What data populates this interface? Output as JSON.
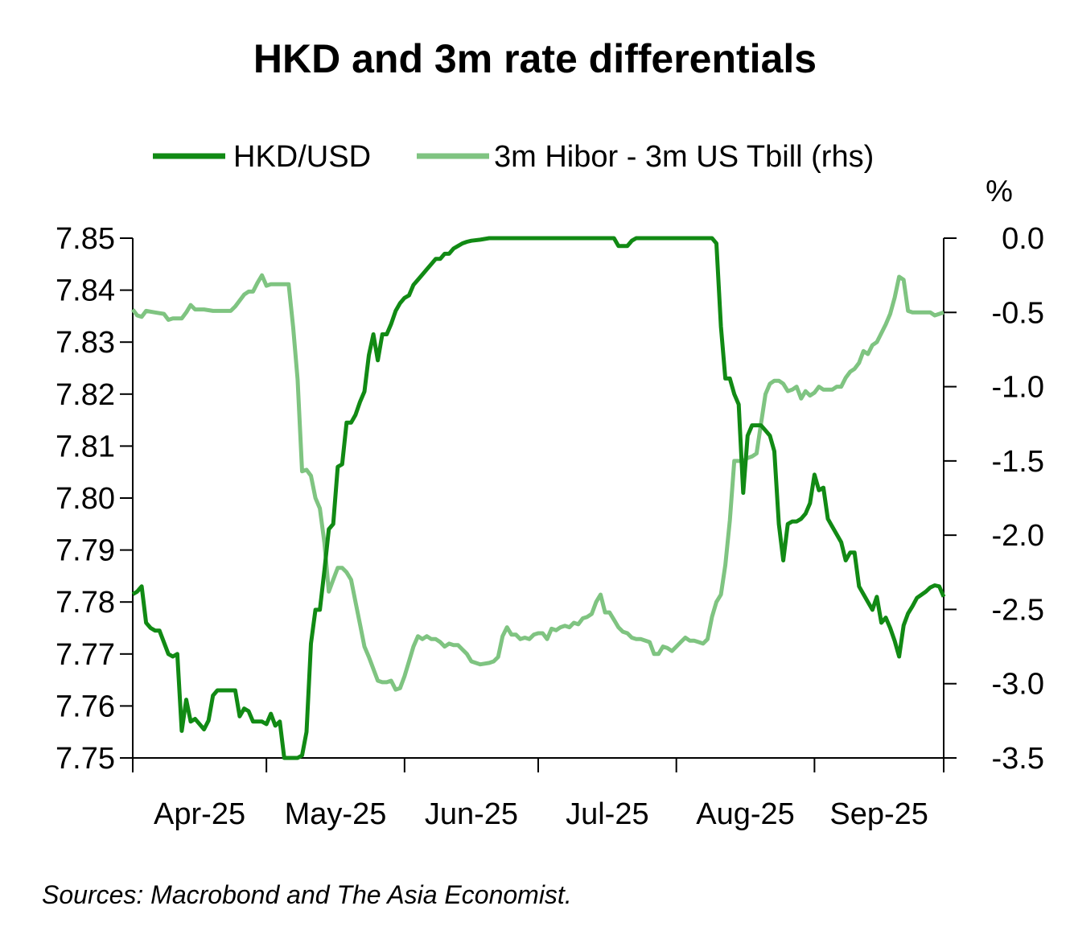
{
  "chart_data": {
    "type": "line",
    "title": "HKD and 3m rate differentials",
    "source": "Sources: Macrobond and The Asia Economist.",
    "right_axis_unit": "%",
    "x_unit": "day-index (0 = 1-Apr-25)",
    "x_range": [
      0,
      182
    ],
    "x_ticks": [
      {
        "label": "Apr-25",
        "pos": 0
      },
      {
        "label": "May-25",
        "pos": 30
      },
      {
        "label": "Jun-25",
        "pos": 61
      },
      {
        "label": "Jul-25",
        "pos": 91
      },
      {
        "label": "Aug-25",
        "pos": 122
      },
      {
        "label": "Sep-25",
        "pos": 153
      }
    ],
    "x_boundary_end": 182,
    "y_left": {
      "min": 7.75,
      "max": 7.85,
      "ticks": [
        "7.75",
        "7.76",
        "7.77",
        "7.78",
        "7.79",
        "7.80",
        "7.81",
        "7.82",
        "7.83",
        "7.84",
        "7.85"
      ]
    },
    "y_right": {
      "min": -3.5,
      "max": 0.0,
      "ticks": [
        "-3.5",
        "-3.0",
        "-2.5",
        "-2.0",
        "-1.5",
        "-1.0",
        "-0.5",
        "0.0"
      ]
    },
    "series": [
      {
        "name": "3m Hibor - 3m US Tbill (rhs)",
        "axis": "right",
        "color": "#7fc481",
        "points": [
          [
            0,
            -0.48
          ],
          [
            1,
            -0.52
          ],
          [
            2,
            -0.53
          ],
          [
            3,
            -0.49
          ],
          [
            5,
            -0.5
          ],
          [
            7,
            -0.51
          ],
          [
            8,
            -0.55
          ],
          [
            9,
            -0.54
          ],
          [
            11,
            -0.54
          ],
          [
            12,
            -0.5
          ],
          [
            13,
            -0.45
          ],
          [
            14,
            -0.48
          ],
          [
            16,
            -0.48
          ],
          [
            18,
            -0.49
          ],
          [
            22,
            -0.49
          ],
          [
            23,
            -0.46
          ],
          [
            25,
            -0.38
          ],
          [
            26,
            -0.36
          ],
          [
            27,
            -0.36
          ],
          [
            28,
            -0.3
          ],
          [
            29,
            -0.25
          ],
          [
            30,
            -0.32
          ],
          [
            31,
            -0.31
          ],
          [
            33,
            -0.31
          ],
          [
            35,
            -0.31
          ],
          [
            36,
            -0.6
          ],
          [
            37,
            -0.95
          ],
          [
            38,
            -1.57
          ],
          [
            39,
            -1.56
          ],
          [
            40,
            -1.6
          ],
          [
            41,
            -1.75
          ],
          [
            42,
            -1.82
          ],
          [
            43,
            -2.05
          ],
          [
            44,
            -2.38
          ],
          [
            45,
            -2.3
          ],
          [
            46,
            -2.22
          ],
          [
            47,
            -2.22
          ],
          [
            48,
            -2.25
          ],
          [
            49,
            -2.3
          ],
          [
            50,
            -2.45
          ],
          [
            51,
            -2.6
          ],
          [
            52,
            -2.75
          ],
          [
            53,
            -2.82
          ],
          [
            55,
            -2.98
          ],
          [
            56,
            -2.99
          ],
          [
            57,
            -2.99
          ],
          [
            58,
            -2.98
          ],
          [
            59,
            -3.04
          ],
          [
            60,
            -3.03
          ],
          [
            61,
            -2.95
          ],
          [
            62,
            -2.85
          ],
          [
            63,
            -2.75
          ],
          [
            64,
            -2.68
          ],
          [
            65,
            -2.7
          ],
          [
            66,
            -2.68
          ],
          [
            67,
            -2.7
          ],
          [
            68,
            -2.7
          ],
          [
            69,
            -2.72
          ],
          [
            70,
            -2.75
          ],
          [
            71,
            -2.73
          ],
          [
            72,
            -2.74
          ],
          [
            73,
            -2.74
          ],
          [
            74,
            -2.77
          ],
          [
            75,
            -2.8
          ],
          [
            76,
            -2.85
          ],
          [
            77,
            -2.86
          ],
          [
            78,
            -2.87
          ],
          [
            80,
            -2.86
          ],
          [
            81,
            -2.85
          ],
          [
            82,
            -2.82
          ],
          [
            83,
            -2.68
          ],
          [
            84,
            -2.62
          ],
          [
            85,
            -2.67
          ],
          [
            86,
            -2.67
          ],
          [
            87,
            -2.7
          ],
          [
            88,
            -2.69
          ],
          [
            89,
            -2.7
          ],
          [
            90,
            -2.67
          ],
          [
            91,
            -2.66
          ],
          [
            92,
            -2.66
          ],
          [
            93,
            -2.7
          ],
          [
            94,
            -2.63
          ],
          [
            95,
            -2.64
          ],
          [
            96,
            -2.62
          ],
          [
            97,
            -2.61
          ],
          [
            98,
            -2.62
          ],
          [
            99,
            -2.59
          ],
          [
            100,
            -2.6
          ],
          [
            101,
            -2.56
          ],
          [
            102,
            -2.55
          ],
          [
            103,
            -2.53
          ],
          [
            104,
            -2.45
          ],
          [
            105,
            -2.4
          ],
          [
            106,
            -2.52
          ],
          [
            107,
            -2.52
          ],
          [
            108,
            -2.57
          ],
          [
            109,
            -2.62
          ],
          [
            110,
            -2.65
          ],
          [
            111,
            -2.66
          ],
          [
            112,
            -2.69
          ],
          [
            113,
            -2.7
          ],
          [
            114,
            -2.7
          ],
          [
            116,
            -2.72
          ],
          [
            117,
            -2.8
          ],
          [
            118,
            -2.8
          ],
          [
            119,
            -2.75
          ],
          [
            120,
            -2.76
          ],
          [
            121,
            -2.78
          ],
          [
            122,
            -2.75
          ],
          [
            123,
            -2.72
          ],
          [
            124,
            -2.69
          ],
          [
            125,
            -2.71
          ],
          [
            126,
            -2.71
          ],
          [
            127,
            -2.72
          ],
          [
            128,
            -2.73
          ],
          [
            129,
            -2.7
          ],
          [
            130,
            -2.55
          ],
          [
            131,
            -2.45
          ],
          [
            132,
            -2.4
          ],
          [
            133,
            -2.2
          ],
          [
            134,
            -1.9
          ],
          [
            135,
            -1.5
          ],
          [
            136,
            -1.5
          ],
          [
            137,
            -1.5
          ],
          [
            138,
            -1.48
          ],
          [
            139,
            -1.47
          ],
          [
            140,
            -1.45
          ],
          [
            141,
            -1.25
          ],
          [
            142,
            -1.05
          ],
          [
            143,
            -0.98
          ],
          [
            144,
            -0.96
          ],
          [
            145,
            -0.96
          ],
          [
            146,
            -0.98
          ],
          [
            147,
            -1.03
          ],
          [
            148,
            -1.02
          ],
          [
            149,
            -1.0
          ],
          [
            150,
            -1.08
          ],
          [
            151,
            -1.03
          ],
          [
            152,
            -1.06
          ],
          [
            153,
            -1.04
          ],
          [
            154,
            -1.0
          ],
          [
            155,
            -1.02
          ],
          [
            156,
            -1.02
          ],
          [
            157,
            -1.02
          ],
          [
            158,
            -1.0
          ],
          [
            159,
            -1.0
          ],
          [
            160,
            -0.94
          ],
          [
            161,
            -0.9
          ],
          [
            162,
            -0.88
          ],
          [
            163,
            -0.84
          ],
          [
            164,
            -0.76
          ],
          [
            165,
            -0.78
          ],
          [
            166,
            -0.72
          ],
          [
            167,
            -0.7
          ],
          [
            168,
            -0.64
          ],
          [
            169,
            -0.58
          ],
          [
            170,
            -0.51
          ],
          [
            171,
            -0.4
          ],
          [
            172,
            -0.26
          ],
          [
            173,
            -0.28
          ],
          [
            174,
            -0.49
          ],
          [
            175,
            -0.5
          ],
          [
            176,
            -0.5
          ],
          [
            178,
            -0.5
          ],
          [
            179,
            -0.5
          ],
          [
            180,
            -0.52
          ],
          [
            181,
            -0.51
          ],
          [
            182,
            -0.5
          ]
        ]
      },
      {
        "name": "HKD/USD",
        "axis": "left",
        "color": "#118a14",
        "points": [
          [
            0,
            7.7815
          ],
          [
            1,
            7.782
          ],
          [
            2,
            7.783
          ],
          [
            3,
            7.776
          ],
          [
            4,
            7.775
          ],
          [
            5,
            7.7745
          ],
          [
            6,
            7.7745
          ],
          [
            8,
            7.77
          ],
          [
            9,
            7.7695
          ],
          [
            10,
            7.77
          ],
          [
            11,
            7.7552
          ],
          [
            12,
            7.7612
          ],
          [
            13,
            7.757
          ],
          [
            14,
            7.7575
          ],
          [
            15,
            7.7565
          ],
          [
            16,
            7.7555
          ],
          [
            17,
            7.7572
          ],
          [
            18,
            7.762
          ],
          [
            19,
            7.763
          ],
          [
            20,
            7.763
          ],
          [
            23,
            7.763
          ],
          [
            24,
            7.758
          ],
          [
            25,
            7.7595
          ],
          [
            26,
            7.759
          ],
          [
            27,
            7.757
          ],
          [
            29,
            7.757
          ],
          [
            30,
            7.7565
          ],
          [
            31,
            7.7585
          ],
          [
            32,
            7.7562
          ],
          [
            33,
            7.757
          ],
          [
            34,
            7.75
          ],
          [
            35,
            7.75
          ],
          [
            37,
            7.75
          ],
          [
            38,
            7.7505
          ],
          [
            39,
            7.755
          ],
          [
            40,
            7.772
          ],
          [
            41,
            7.7785
          ],
          [
            42,
            7.7785
          ],
          [
            43,
            7.786
          ],
          [
            44,
            7.794
          ],
          [
            45,
            7.795
          ],
          [
            46,
            7.806
          ],
          [
            47,
            7.8065
          ],
          [
            48,
            7.8145
          ],
          [
            49,
            7.8145
          ],
          [
            50,
            7.816
          ],
          [
            51,
            7.8185
          ],
          [
            52,
            7.8205
          ],
          [
            53,
            7.8275
          ],
          [
            54,
            7.8315
          ],
          [
            55,
            7.8265
          ],
          [
            56,
            7.8315
          ],
          [
            57,
            7.8315
          ],
          [
            58,
            7.8335
          ],
          [
            59,
            7.836
          ],
          [
            60,
            7.8375
          ],
          [
            61,
            7.8385
          ],
          [
            62,
            7.839
          ],
          [
            63,
            7.841
          ],
          [
            64,
            7.842
          ],
          [
            65,
            7.843
          ],
          [
            66,
            7.844
          ],
          [
            67,
            7.845
          ],
          [
            68,
            7.846
          ],
          [
            69,
            7.846
          ],
          [
            70,
            7.847
          ],
          [
            71,
            7.847
          ],
          [
            72,
            7.848
          ],
          [
            73,
            7.8485
          ],
          [
            74,
            7.849
          ],
          [
            75,
            7.8493
          ],
          [
            76,
            7.8495
          ],
          [
            78,
            7.8497
          ],
          [
            80,
            7.85
          ],
          [
            130,
            7.85
          ],
          [
            108,
            7.85
          ],
          [
            109,
            7.8485
          ],
          [
            110,
            7.8485
          ],
          [
            111,
            7.8485
          ],
          [
            112,
            7.8495
          ],
          [
            113,
            7.85
          ],
          [
            114,
            7.85
          ],
          [
            130,
            7.85
          ],
          [
            131,
            7.849
          ],
          [
            132,
            7.833
          ],
          [
            133,
            7.823
          ],
          [
            134,
            7.823
          ],
          [
            135,
            7.82
          ],
          [
            136,
            7.818
          ],
          [
            137,
            7.801
          ],
          [
            138,
            7.812
          ],
          [
            139,
            7.814
          ],
          [
            140,
            7.814
          ],
          [
            141,
            7.814
          ],
          [
            142,
            7.813
          ],
          [
            143,
            7.812
          ],
          [
            144,
            7.809
          ],
          [
            145,
            7.795
          ],
          [
            146,
            7.788
          ],
          [
            147,
            7.795
          ],
          [
            148,
            7.7955
          ],
          [
            149,
            7.7955
          ],
          [
            150,
            7.796
          ],
          [
            151,
            7.797
          ],
          [
            152,
            7.799
          ],
          [
            153,
            7.8045
          ],
          [
            154,
            7.8015
          ],
          [
            155,
            7.802
          ],
          [
            156,
            7.796
          ],
          [
            157,
            7.7945
          ],
          [
            158,
            7.793
          ],
          [
            159,
            7.7915
          ],
          [
            160,
            7.788
          ],
          [
            161,
            7.7895
          ],
          [
            162,
            7.7895
          ],
          [
            163,
            7.783
          ],
          [
            164,
            7.7815
          ],
          [
            165,
            7.78
          ],
          [
            166,
            7.7785
          ],
          [
            167,
            7.781
          ],
          [
            168,
            7.776
          ],
          [
            169,
            7.777
          ],
          [
            170,
            7.775
          ],
          [
            171,
            7.7725
          ],
          [
            172,
            7.7695
          ],
          [
            173,
            7.7755
          ],
          [
            174,
            7.7778
          ],
          [
            175,
            7.7792
          ],
          [
            176,
            7.7808
          ],
          [
            177,
            7.7814
          ],
          [
            178,
            7.782
          ],
          [
            179,
            7.7828
          ],
          [
            180,
            7.7832
          ],
          [
            181,
            7.783
          ],
          [
            182,
            7.781
          ]
        ]
      }
    ]
  }
}
